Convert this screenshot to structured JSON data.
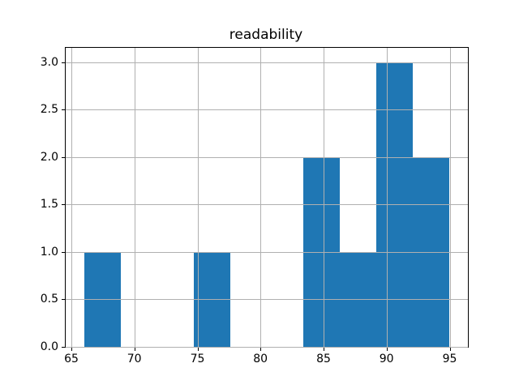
{
  "chart_data": {
    "type": "bar",
    "subtype": "histogram",
    "title": "readability",
    "xlabel": "",
    "ylabel": "",
    "bin_edges": [
      66,
      68.9,
      71.8,
      74.7,
      77.6,
      80.5,
      83.4,
      86.3,
      89.2,
      92.1,
      95
    ],
    "counts": [
      1,
      0,
      0,
      1,
      0,
      0,
      2,
      1,
      3,
      2
    ],
    "xticks": [
      65,
      70,
      75,
      80,
      85,
      90,
      95
    ],
    "xtick_labels": [
      "65",
      "70",
      "75",
      "80",
      "85",
      "90",
      "95"
    ],
    "yticks": [
      0.0,
      0.5,
      1.0,
      1.5,
      2.0,
      2.5,
      3.0
    ],
    "ytick_labels": [
      "0.0",
      "0.5",
      "1.0",
      "1.5",
      "2.0",
      "2.5",
      "3.0"
    ],
    "xlim": [
      64.55,
      96.45
    ],
    "ylim": [
      0,
      3.15
    ],
    "grid": true,
    "grid_over_bars": true,
    "legend": null,
    "bar_color": "#1f77b4",
    "grid_color": "#b0b0b0",
    "spine_color": "#000000",
    "background_color": "#ffffff"
  }
}
